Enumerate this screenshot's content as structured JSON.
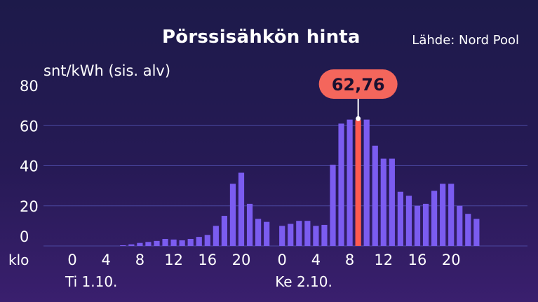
{
  "chart_data": {
    "type": "bar",
    "title": "Pörssisähkön hinta",
    "source": "Lähde: Nord Pool",
    "ylabel": "snt/kWh (sis. alv)",
    "xlabel": "klo",
    "ylim": [
      0,
      80
    ],
    "yticks": [
      "0",
      "20",
      "40",
      "60",
      "80"
    ],
    "grid": true,
    "hours": [
      0,
      1,
      2,
      3,
      4,
      5,
      6,
      7,
      8,
      9,
      10,
      11,
      12,
      13,
      14,
      15,
      16,
      17,
      18,
      19,
      20,
      21,
      22,
      23,
      0,
      1,
      2,
      3,
      4,
      5,
      6,
      7,
      8,
      9,
      10,
      11,
      12,
      13,
      14,
      15,
      16,
      17,
      18,
      19,
      20,
      21,
      22,
      23
    ],
    "xtick_labels": [
      "0",
      "4",
      "8",
      "12",
      "16",
      "20",
      "0",
      "4",
      "8",
      "12",
      "16",
      "20"
    ],
    "days": [
      {
        "label": "Ti 1.10.",
        "start_index": 0
      },
      {
        "label": "Ke 2.10.",
        "start_index": 24
      }
    ],
    "values": [
      0.0,
      0.0,
      0.0,
      0.0,
      0.0,
      0.0,
      0.3,
      0.8,
      1.5,
      2.0,
      2.5,
      3.5,
      3.2,
      2.8,
      3.5,
      4.5,
      5.5,
      10.0,
      15.0,
      31.0,
      36.5,
      21.0,
      13.5,
      12.0,
      10.0,
      11.0,
      12.5,
      12.5,
      10.0,
      10.5,
      40.5,
      61.0,
      63.0,
      62.76,
      63.0,
      50.0,
      43.5,
      43.5,
      27.0,
      25.0,
      20.0,
      21.0,
      27.5,
      31.0,
      31.0,
      20.0,
      16.0,
      13.5
    ],
    "highlight": {
      "index": 33,
      "label": "62,76"
    },
    "colors": {
      "bar": "#7b5cf0",
      "highlight_bar": "#ff5a50",
      "callout_bg": "#f4665c",
      "callout_text": "#1a1030",
      "grid": "#4a47a0",
      "text": "#ffffff"
    }
  }
}
